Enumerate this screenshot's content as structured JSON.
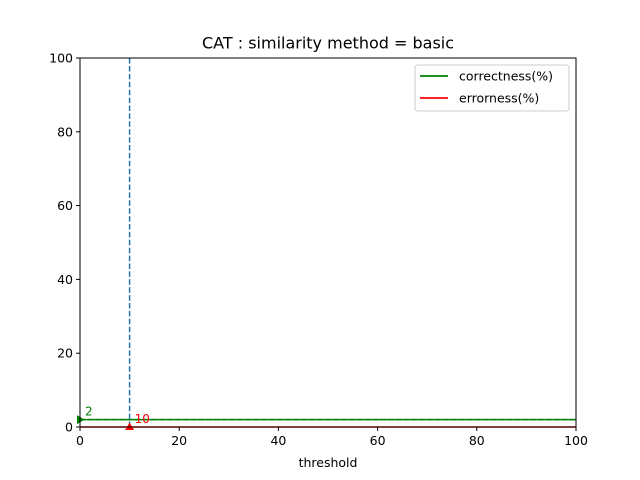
{
  "chart_data": {
    "type": "line",
    "title": "CAT : similarity method = basic",
    "xlabel": "threshold",
    "ylabel": "",
    "xlim": [
      0,
      100
    ],
    "ylim": [
      0,
      100
    ],
    "xticks": [
      0,
      20,
      40,
      60,
      80,
      100
    ],
    "yticks": [
      0,
      20,
      40,
      60,
      80,
      100
    ],
    "grid": false,
    "legend_position": "top-right",
    "series": [
      {
        "name": "correctness(%)",
        "color": "#008000",
        "x": [
          0,
          100
        ],
        "y": [
          2,
          2
        ]
      },
      {
        "name": "errorness(%)",
        "color": "#ff0000",
        "x": [
          0,
          100
        ],
        "y": [
          0,
          0
        ]
      }
    ],
    "reference_lines": {
      "color": "#1f77b4",
      "style": "dashed",
      "vertical_x": 10,
      "horizontal_y": 2
    },
    "annotations": [
      {
        "label": "2",
        "x": 0,
        "y": 2,
        "color": "#008000",
        "marker": "right-triangle"
      },
      {
        "label": "10",
        "x": 10,
        "y": 0,
        "color": "#ff0000",
        "marker": "up-triangle"
      }
    ]
  }
}
